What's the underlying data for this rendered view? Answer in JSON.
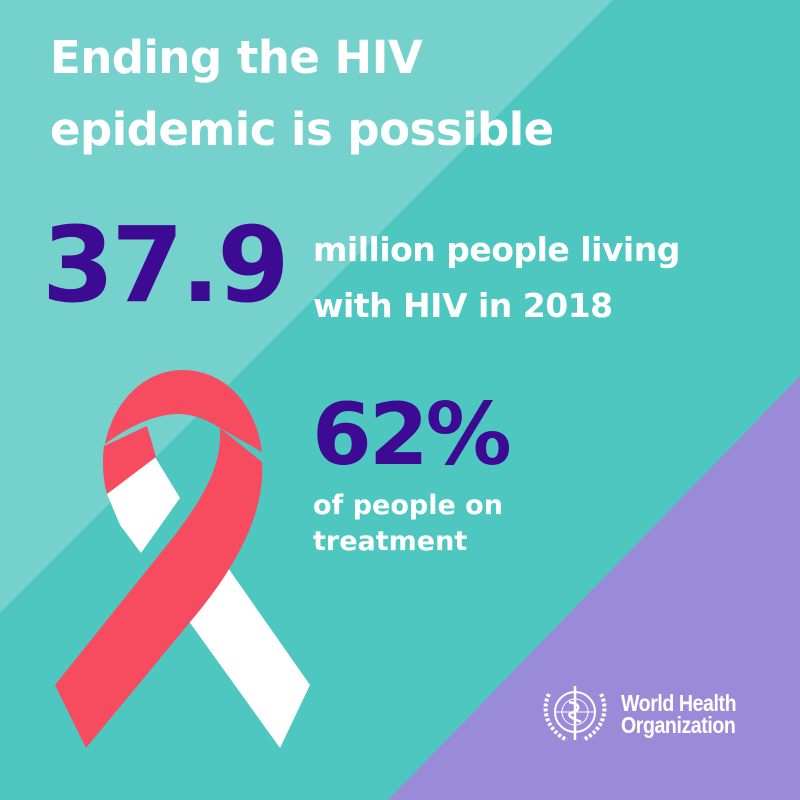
{
  "title": [
    "Ending the HIV",
    "epidemic is possible"
  ],
  "stat1": {
    "value": "37.9",
    "label": [
      "million people living",
      "with HIV in 2018"
    ]
  },
  "stat2": {
    "value": "62%",
    "label": [
      "of people on",
      "treatment"
    ]
  },
  "logo": {
    "text": [
      "World Health",
      "Organization"
    ],
    "icon": "who-emblem-icon"
  },
  "colors": {
    "background": "#4fc7c1",
    "light_stripe": "#74d1cc",
    "purple_corner": "#9a8bd8",
    "number": "#3d0a94",
    "ribbon_red": "#f74b60",
    "ribbon_white": "#ffffff"
  }
}
